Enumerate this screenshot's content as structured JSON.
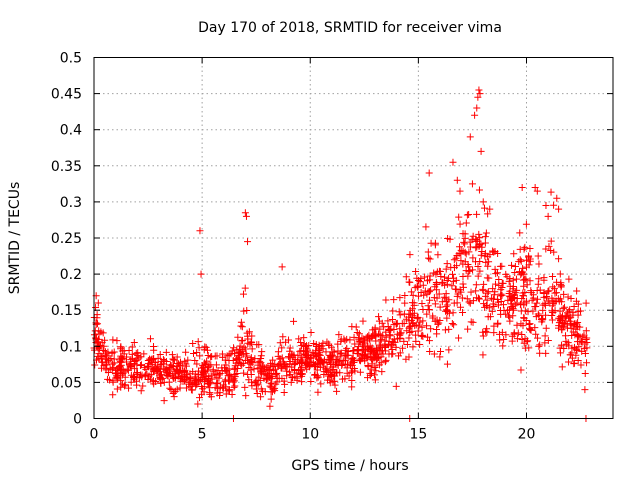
{
  "chart_data": {
    "type": "scatter",
    "title": "Day 170 of 2018, SRMTID for receiver vima",
    "xlabel": "GPS time / hours",
    "ylabel": "SRMTID / TECUs",
    "xlim": [
      0,
      24
    ],
    "ylim": [
      0,
      0.5
    ],
    "x_ticks": [
      0,
      5,
      10,
      15,
      20
    ],
    "x_tick_labels": [
      "0",
      "5",
      "10",
      "15",
      "20"
    ],
    "y_ticks": [
      0,
      0.05,
      0.1,
      0.15,
      0.2,
      0.25,
      0.3,
      0.35,
      0.4,
      0.45,
      0.5
    ],
    "y_tick_labels": [
      "0",
      "0.05",
      "0.1",
      "0.15",
      "0.2",
      "0.25",
      "0.3",
      "0.35",
      "0.4",
      "0.45",
      "0.5"
    ],
    "grid": true,
    "marker": "plus",
    "series": [
      {
        "name": "SRMTID",
        "color": "#ff0000",
        "envelope": {
          "hours": [
            0,
            0.2,
            0.5,
            1,
            2,
            3,
            4,
            5,
            6,
            6.5,
            7,
            7.5,
            8,
            9,
            10,
            11,
            12,
            13,
            14,
            14.5,
            15,
            15.5,
            16,
            16.5,
            17,
            17.5,
            17.8,
            18,
            18.5,
            19,
            19.5,
            20,
            20.5,
            21,
            21.5,
            22,
            22.5,
            22.8
          ],
          "center": [
            0.12,
            0.11,
            0.08,
            0.072,
            0.068,
            0.065,
            0.062,
            0.065,
            0.06,
            0.07,
            0.1,
            0.065,
            0.055,
            0.075,
            0.08,
            0.075,
            0.085,
            0.1,
            0.12,
            0.14,
            0.17,
            0.16,
            0.17,
            0.18,
            0.2,
            0.22,
            0.24,
            0.2,
            0.17,
            0.15,
            0.16,
            0.17,
            0.16,
            0.17,
            0.15,
            0.13,
            0.11,
            0.1
          ],
          "spread": [
            0.04,
            0.035,
            0.03,
            0.028,
            0.026,
            0.026,
            0.026,
            0.03,
            0.028,
            0.03,
            0.05,
            0.03,
            0.025,
            0.03,
            0.03,
            0.03,
            0.032,
            0.035,
            0.045,
            0.05,
            0.065,
            0.07,
            0.07,
            0.07,
            0.07,
            0.08,
            0.09,
            0.08,
            0.07,
            0.06,
            0.065,
            0.07,
            0.07,
            0.07,
            0.06,
            0.05,
            0.045,
            0.04
          ]
        },
        "highlights": [
          [
            0.1,
            0.17
          ],
          [
            0.2,
            0.16
          ],
          [
            4.9,
            0.26
          ],
          [
            4.95,
            0.2
          ],
          [
            7.0,
            0.285
          ],
          [
            7.05,
            0.28
          ],
          [
            7.1,
            0.245
          ],
          [
            8.7,
            0.21
          ],
          [
            15.5,
            0.34
          ],
          [
            16.6,
            0.355
          ],
          [
            17.4,
            0.39
          ],
          [
            17.6,
            0.42
          ],
          [
            17.7,
            0.43
          ],
          [
            17.75,
            0.445
          ],
          [
            17.8,
            0.455
          ],
          [
            17.85,
            0.45
          ],
          [
            17.9,
            0.37
          ],
          [
            17.5,
            0.325
          ],
          [
            19.8,
            0.32
          ],
          [
            20.4,
            0.32
          ],
          [
            20.5,
            0.315
          ],
          [
            21.4,
            0.305
          ],
          [
            20.9,
            0.295
          ],
          [
            21.0,
            0.28
          ],
          [
            16.8,
            0.33
          ],
          [
            18.0,
            0.3
          ],
          [
            18.3,
            0.29
          ],
          [
            6.45,
            0.0
          ],
          [
            14.6,
            0.0
          ],
          [
            22.75,
            0.0
          ],
          [
            4.8,
            0.02
          ],
          [
            22.7,
            0.04
          ]
        ]
      }
    ]
  }
}
